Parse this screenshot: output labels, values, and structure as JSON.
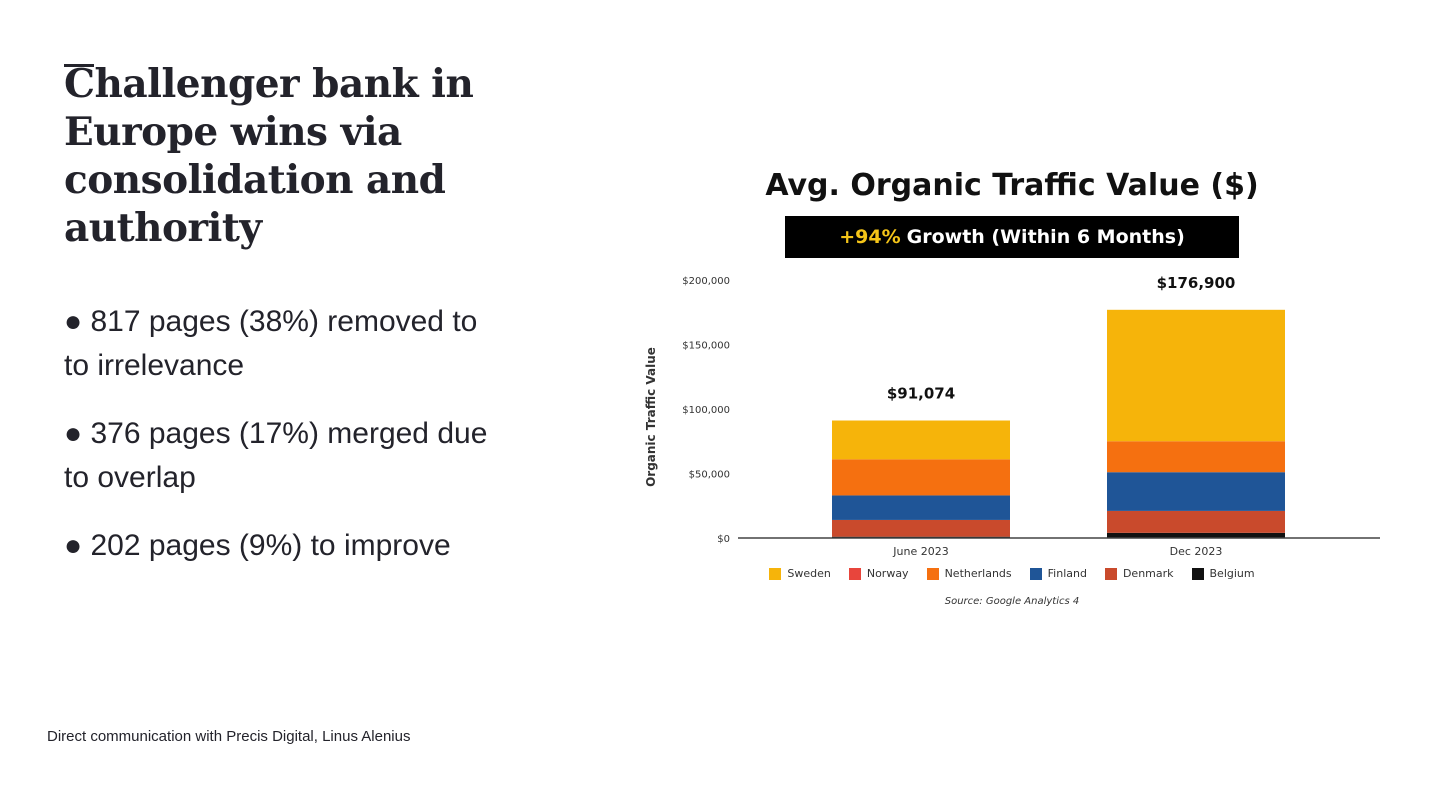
{
  "slide": {
    "title": "Challenger bank in Europe wins via consolidation and authority",
    "bullets": [
      "● 817 pages (38%) removed to to irrelevance",
      "● 376 pages (17%) merged due to overlap",
      "● 202 pages (9%) to improve"
    ],
    "footer": "Direct communication with Precis Digital, Linus Alenius"
  },
  "chart_data": {
    "type": "bar",
    "stacked": true,
    "title": "Avg. Organic Traffic Value ($)",
    "subtitle_highlight": "+94%",
    "subtitle_rest": "Growth (Within 6 Months)",
    "xlabel": "",
    "ylabel": "Organic Traffic Value",
    "ylim": [
      0,
      200000
    ],
    "yticks": [
      0,
      50000,
      100000,
      150000,
      200000
    ],
    "ytick_labels": [
      "$0",
      "$50,000",
      "$100,000",
      "$150,000",
      "$200,000"
    ],
    "categories": [
      "June 2023",
      "Dec 2023"
    ],
    "totals": [
      91074,
      176900
    ],
    "total_labels": [
      "$91,074",
      "$176,900"
    ],
    "grid": false,
    "legend_position": "bottom",
    "series": [
      {
        "name": "Belgium",
        "color": "#111111",
        "values": [
          1000,
          4000
        ]
      },
      {
        "name": "Denmark",
        "color": "#c94a2c",
        "values": [
          13000,
          17000
        ]
      },
      {
        "name": "Norway",
        "color": "#e8453c",
        "values": [
          0,
          0
        ]
      },
      {
        "name": "Finland",
        "color": "#1f5597",
        "values": [
          19000,
          30000
        ]
      },
      {
        "name": "Netherlands",
        "color": "#f57010",
        "values": [
          28000,
          24000
        ]
      },
      {
        "name": "Sweden",
        "color": "#f6b40a",
        "values": [
          30074,
          101900
        ]
      }
    ],
    "legend_order": [
      "Sweden",
      "Norway",
      "Netherlands",
      "Finland",
      "Denmark",
      "Belgium"
    ],
    "source": "Source: Google Analytics 4"
  }
}
